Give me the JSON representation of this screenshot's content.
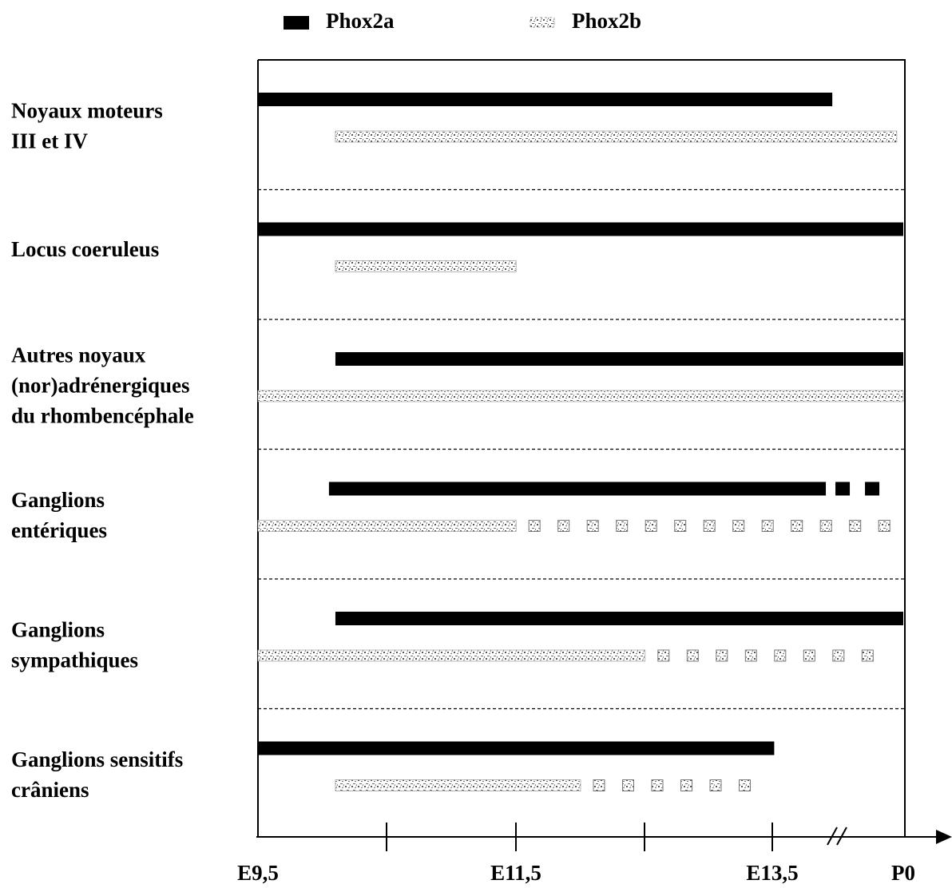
{
  "chart_data": {
    "type": "bar",
    "orientation": "horizontal-timeline",
    "legend": {
      "position": "top",
      "entries": [
        {
          "name": "Phox2a",
          "pattern": "solid-black"
        },
        {
          "name": "Phox2b",
          "pattern": "speckled-grey"
        }
      ]
    },
    "x_ticks": [
      {
        "at": 0,
        "label": "E9,5"
      },
      {
        "at": 1,
        "label": ""
      },
      {
        "at": 2,
        "label": "E11,5"
      },
      {
        "at": 3,
        "label": ""
      },
      {
        "at": 4,
        "label": "E13,5"
      },
      {
        "at": 5,
        "label": "P0"
      }
    ],
    "axis_break_between": [
      "E13,5",
      "P0"
    ],
    "xlim": [
      0,
      5
    ],
    "grid": false,
    "rows": [
      {
        "label_lines": [
          "Noyaux moteurs",
          "III et IV"
        ],
        "Phox2a": {
          "start": 0.0,
          "end": 4.45,
          "dashed_after": null
        },
        "Phox2b": {
          "start": 0.6,
          "end": 4.95,
          "dashed_after": null
        }
      },
      {
        "label_lines": [
          "Locus coeruleus"
        ],
        "Phox2a": {
          "start": 0.0,
          "end": 5.0,
          "dashed_after": null
        },
        "Phox2b": {
          "start": 0.6,
          "end": 2.0,
          "dashed_after": null
        }
      },
      {
        "label_lines": [
          "Autres noyaux",
          "(nor)adrénergiques",
          "du rhombencéphale"
        ],
        "Phox2a": {
          "start": 0.6,
          "end": 5.0,
          "dashed_after": null
        },
        "Phox2b": {
          "start": 0.0,
          "end": 5.0,
          "dashed_after": null
        }
      },
      {
        "label_lines": [
          "Ganglions",
          "entériques"
        ],
        "Phox2a": {
          "start": 0.55,
          "end": 5.0,
          "dashed_after": 4.4
        },
        "Phox2b": {
          "start": 0.0,
          "end": 5.0,
          "dashed_after": 2.0
        }
      },
      {
        "label_lines": [
          "Ganglions",
          "sympathiques"
        ],
        "Phox2a": {
          "start": 0.6,
          "end": 5.0,
          "dashed_after": null
        },
        "Phox2b": {
          "start": 0.0,
          "end": 4.95,
          "dashed_after": 3.0
        }
      },
      {
        "label_lines": [
          "Ganglions sensitifs",
          "crâniens"
        ],
        "Phox2a": {
          "start": 0.0,
          "end": 4.0,
          "dashed_after": null
        },
        "Phox2b": {
          "start": 0.6,
          "end": 4.0,
          "dashed_after": 2.5
        }
      }
    ]
  }
}
